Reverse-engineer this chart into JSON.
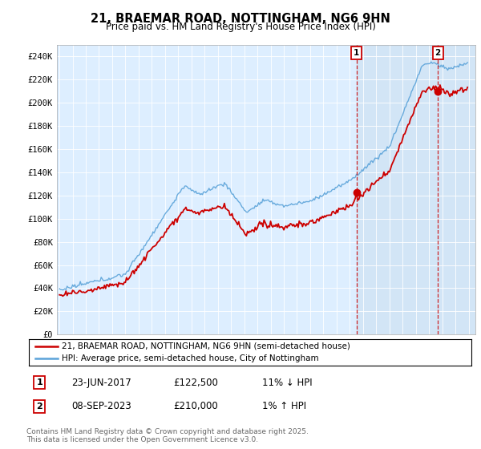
{
  "title": "21, BRAEMAR ROAD, NOTTINGHAM, NG6 9HN",
  "subtitle": "Price paid vs. HM Land Registry's House Price Index (HPI)",
  "ylim": [
    0,
    250000
  ],
  "yticks": [
    0,
    20000,
    40000,
    60000,
    80000,
    100000,
    120000,
    140000,
    160000,
    180000,
    200000,
    220000,
    240000
  ],
  "ytick_labels": [
    "£0",
    "£20K",
    "£40K",
    "£60K",
    "£80K",
    "£100K",
    "£120K",
    "£140K",
    "£160K",
    "£180K",
    "£200K",
    "£220K",
    "£240K"
  ],
  "hpi_color": "#5ba3d9",
  "price_color": "#cc0000",
  "annotation1": {
    "label": "1",
    "date": "23-JUN-2017",
    "price": "£122,500",
    "pct": "11% ↓ HPI"
  },
  "annotation2": {
    "label": "2",
    "date": "08-SEP-2023",
    "price": "£210,000",
    "pct": "1% ↑ HPI"
  },
  "legend_line1": "21, BRAEMAR ROAD, NOTTINGHAM, NG6 9HN (semi-detached house)",
  "legend_line2": "HPI: Average price, semi-detached house, City of Nottingham",
  "footer": "Contains HM Land Registry data © Crown copyright and database right 2025.\nThis data is licensed under the Open Government Licence v3.0.",
  "plot_bg_color": "#ddeeff",
  "shade_color": "#cce0f0",
  "x_start_year": 1995,
  "x_end_year": 2026,
  "marker1_year": 2017.48,
  "marker2_year": 2023.69,
  "marker1_price": 122500,
  "marker2_price": 210000
}
